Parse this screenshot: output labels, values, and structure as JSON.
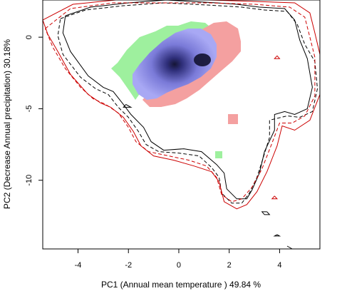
{
  "chart_data": {
    "type": "contour-density",
    "title": "",
    "xlabel": "PC1 (Annual mean temperature ) 49.84 %",
    "ylabel": "PC2 (Decrease Annual precipitation) 30.18%",
    "xlim": [
      -5.4,
      5.6
    ],
    "ylim": [
      -14.8,
      2.6
    ],
    "xticks": [
      -4,
      -2,
      0,
      2,
      4
    ],
    "yticks": [
      0,
      -5,
      -10
    ],
    "grid": false,
    "legend": "none",
    "colors": {
      "niche_overlap": "#1c1c40",
      "species1_only": "#9ef09e",
      "species2_only": "#f4a0a0",
      "envelope_species1": "#000000",
      "envelope_species2": "#cc0000"
    },
    "density_centre": {
      "x": 1.0,
      "y": -1.3
    },
    "series": [
      {
        "style": "solid",
        "color": "#000000",
        "points": [
          [
            -4.5,
            1.5
          ],
          [
            -3.5,
            2.1
          ],
          [
            -2,
            2.4
          ],
          [
            -0.5,
            2.6
          ],
          [
            0.5,
            2.5
          ],
          [
            1.5,
            2.4
          ],
          [
            2.3,
            2.3
          ],
          [
            3.2,
            2.1
          ],
          [
            4.2,
            2.0
          ],
          [
            4.6,
            1.2
          ],
          [
            4.8,
            -0.2
          ],
          [
            5.1,
            -1.5
          ],
          [
            5.3,
            -3.5
          ],
          [
            5.1,
            -5.0
          ],
          [
            4.6,
            -5.4
          ],
          [
            4.2,
            -5.2
          ],
          [
            3.8,
            -5.4
          ],
          [
            3.8,
            -6.5
          ],
          [
            3.4,
            -8.0
          ],
          [
            3.2,
            -9.5
          ],
          [
            2.9,
            -10.7
          ],
          [
            2.7,
            -11.3
          ],
          [
            2.3,
            -11.3
          ],
          [
            1.9,
            -10.6
          ],
          [
            1.8,
            -9.5
          ],
          [
            1.5,
            -8.9
          ],
          [
            0.9,
            -8.0
          ],
          [
            0.2,
            -7.8
          ],
          [
            -0.6,
            -7.9
          ],
          [
            -1.1,
            -7.3
          ],
          [
            -1.4,
            -6.3
          ],
          [
            -1.9,
            -5.4
          ],
          [
            -2.2,
            -4.7
          ],
          [
            -2.6,
            -3.8
          ],
          [
            -3.0,
            -3.5
          ],
          [
            -3.6,
            -2.7
          ],
          [
            -4.3,
            -1.0
          ],
          [
            -4.6,
            0.3
          ],
          [
            -4.5,
            1.5
          ]
        ]
      },
      {
        "style": "dashed",
        "color": "#000000",
        "points": [
          [
            -4.7,
            1.3
          ],
          [
            -3.7,
            1.9
          ],
          [
            -2.2,
            2.2
          ],
          [
            -0.6,
            2.4
          ],
          [
            0.6,
            2.3
          ],
          [
            1.6,
            2.2
          ],
          [
            2.5,
            2.1
          ],
          [
            3.4,
            1.9
          ],
          [
            4.3,
            1.8
          ],
          [
            4.7,
            0.9
          ],
          [
            5.0,
            -0.5
          ],
          [
            5.4,
            -1.7
          ],
          [
            5.5,
            -3.6
          ],
          [
            5.3,
            -5.2
          ],
          [
            4.8,
            -5.6
          ],
          [
            4.3,
            -5.5
          ],
          [
            3.6,
            -5.8
          ],
          [
            3.6,
            -7.0
          ],
          [
            3.3,
            -8.7
          ],
          [
            3.1,
            -9.8
          ],
          [
            2.8,
            -10.9
          ],
          [
            2.5,
            -11.6
          ],
          [
            2.1,
            -11.6
          ],
          [
            1.7,
            -10.9
          ],
          [
            1.6,
            -9.8
          ],
          [
            1.3,
            -9.1
          ],
          [
            0.8,
            -8.3
          ],
          [
            0.0,
            -8.1
          ],
          [
            -0.8,
            -8.0
          ],
          [
            -1.3,
            -7.5
          ],
          [
            -1.6,
            -6.6
          ],
          [
            -2.0,
            -5.6
          ],
          [
            -2.4,
            -4.9
          ],
          [
            -2.8,
            -4.0
          ],
          [
            -3.3,
            -3.6
          ],
          [
            -3.9,
            -2.8
          ],
          [
            -4.6,
            -1.2
          ],
          [
            -4.8,
            0.1
          ],
          [
            -4.7,
            1.3
          ]
        ]
      },
      {
        "style": "solid",
        "color": "#cc0000",
        "points": [
          [
            -5.4,
            1.2
          ],
          [
            -4.2,
            2.3
          ],
          [
            -2.5,
            2.6
          ],
          [
            -0.8,
            2.6
          ],
          [
            1.2,
            2.6
          ],
          [
            3.0,
            2.5
          ],
          [
            4.6,
            2.4
          ],
          [
            5.2,
            1.7
          ],
          [
            5.4,
            0.3
          ],
          [
            5.6,
            -1.2
          ],
          [
            5.6,
            -4.0
          ],
          [
            5.2,
            -5.8
          ],
          [
            4.6,
            -6.5
          ],
          [
            4.1,
            -6.2
          ],
          [
            3.9,
            -7.6
          ],
          [
            3.5,
            -9.4
          ],
          [
            3.1,
            -10.8
          ],
          [
            2.7,
            -11.7
          ],
          [
            2.3,
            -12.0
          ],
          [
            1.8,
            -11.5
          ],
          [
            1.6,
            -10.1
          ],
          [
            1.3,
            -9.4
          ],
          [
            0.6,
            -9.0
          ],
          [
            -0.2,
            -8.6
          ],
          [
            -1.0,
            -8.3
          ],
          [
            -1.5,
            -7.6
          ],
          [
            -1.8,
            -6.6
          ],
          [
            -2.2,
            -5.6
          ],
          [
            -2.7,
            -4.9
          ],
          [
            -3.1,
            -4.6
          ],
          [
            -3.6,
            -4.0
          ],
          [
            -4.3,
            -2.6
          ],
          [
            -4.8,
            -1.0
          ],
          [
            -5.2,
            0.2
          ],
          [
            -5.4,
            1.2
          ]
        ]
      },
      {
        "style": "dashed",
        "color": "#cc0000",
        "points": [
          [
            -5.3,
            0.6
          ],
          [
            -4.3,
            2.0
          ],
          [
            -2.6,
            2.4
          ],
          [
            -0.8,
            2.4
          ],
          [
            1.2,
            2.4
          ],
          [
            3.0,
            2.3
          ],
          [
            4.4,
            2.1
          ],
          [
            5.0,
            1.4
          ],
          [
            5.2,
            0.0
          ],
          [
            5.4,
            -1.4
          ],
          [
            5.4,
            -4.1
          ],
          [
            5.0,
            -5.5
          ],
          [
            4.5,
            -6.0
          ],
          [
            4.0,
            -6.0
          ],
          [
            3.7,
            -7.4
          ],
          [
            3.3,
            -9.2
          ],
          [
            2.9,
            -10.5
          ],
          [
            2.5,
            -11.3
          ],
          [
            2.1,
            -11.5
          ],
          [
            1.7,
            -11.0
          ],
          [
            1.5,
            -9.8
          ],
          [
            1.1,
            -9.0
          ],
          [
            0.4,
            -8.6
          ],
          [
            -0.4,
            -8.3
          ],
          [
            -1.2,
            -8.0
          ],
          [
            -1.7,
            -7.3
          ],
          [
            -2.0,
            -6.3
          ],
          [
            -2.4,
            -5.3
          ],
          [
            -2.9,
            -4.7
          ],
          [
            -3.4,
            -4.3
          ],
          [
            -3.9,
            -3.5
          ],
          [
            -4.5,
            -2.2
          ],
          [
            -5.0,
            -0.7
          ],
          [
            -5.3,
            0.6
          ]
        ]
      }
    ],
    "fragments": [
      {
        "style": "solid",
        "color": "#000000",
        "points": [
          [
            3.5,
            -12.2
          ],
          [
            3.6,
            -12.4
          ],
          [
            3.4,
            -12.4
          ],
          [
            3.3,
            -12.2
          ],
          [
            3.5,
            -12.2
          ]
        ]
      },
      {
        "style": "solid",
        "color": "#000000",
        "points": [
          [
            3.9,
            -13.8
          ],
          [
            4.0,
            -13.9
          ],
          [
            3.8,
            -13.9
          ],
          [
            3.9,
            -13.8
          ]
        ]
      },
      {
        "style": "solid",
        "color": "#000000",
        "points": [
          [
            4.3,
            -14.6
          ],
          [
            4.4,
            -14.7
          ],
          [
            4.5,
            -14.8
          ]
        ]
      },
      {
        "style": "solid",
        "color": "#cc0000",
        "points": [
          [
            3.9,
            -1.3
          ],
          [
            4.0,
            -1.5
          ],
          [
            3.8,
            -1.5
          ],
          [
            3.9,
            -1.3
          ]
        ]
      },
      {
        "style": "solid",
        "color": "#cc0000",
        "points": [
          [
            3.8,
            -11.1
          ],
          [
            3.9,
            -11.3
          ],
          [
            3.7,
            -11.3
          ],
          [
            3.8,
            -11.1
          ]
        ]
      },
      {
        "style": "solid",
        "color": "#000000",
        "points": [
          [
            -2.1,
            -4.7
          ],
          [
            -1.9,
            -4.9
          ],
          [
            -2.2,
            -4.9
          ],
          [
            -2.1,
            -4.7
          ]
        ]
      }
    ]
  }
}
